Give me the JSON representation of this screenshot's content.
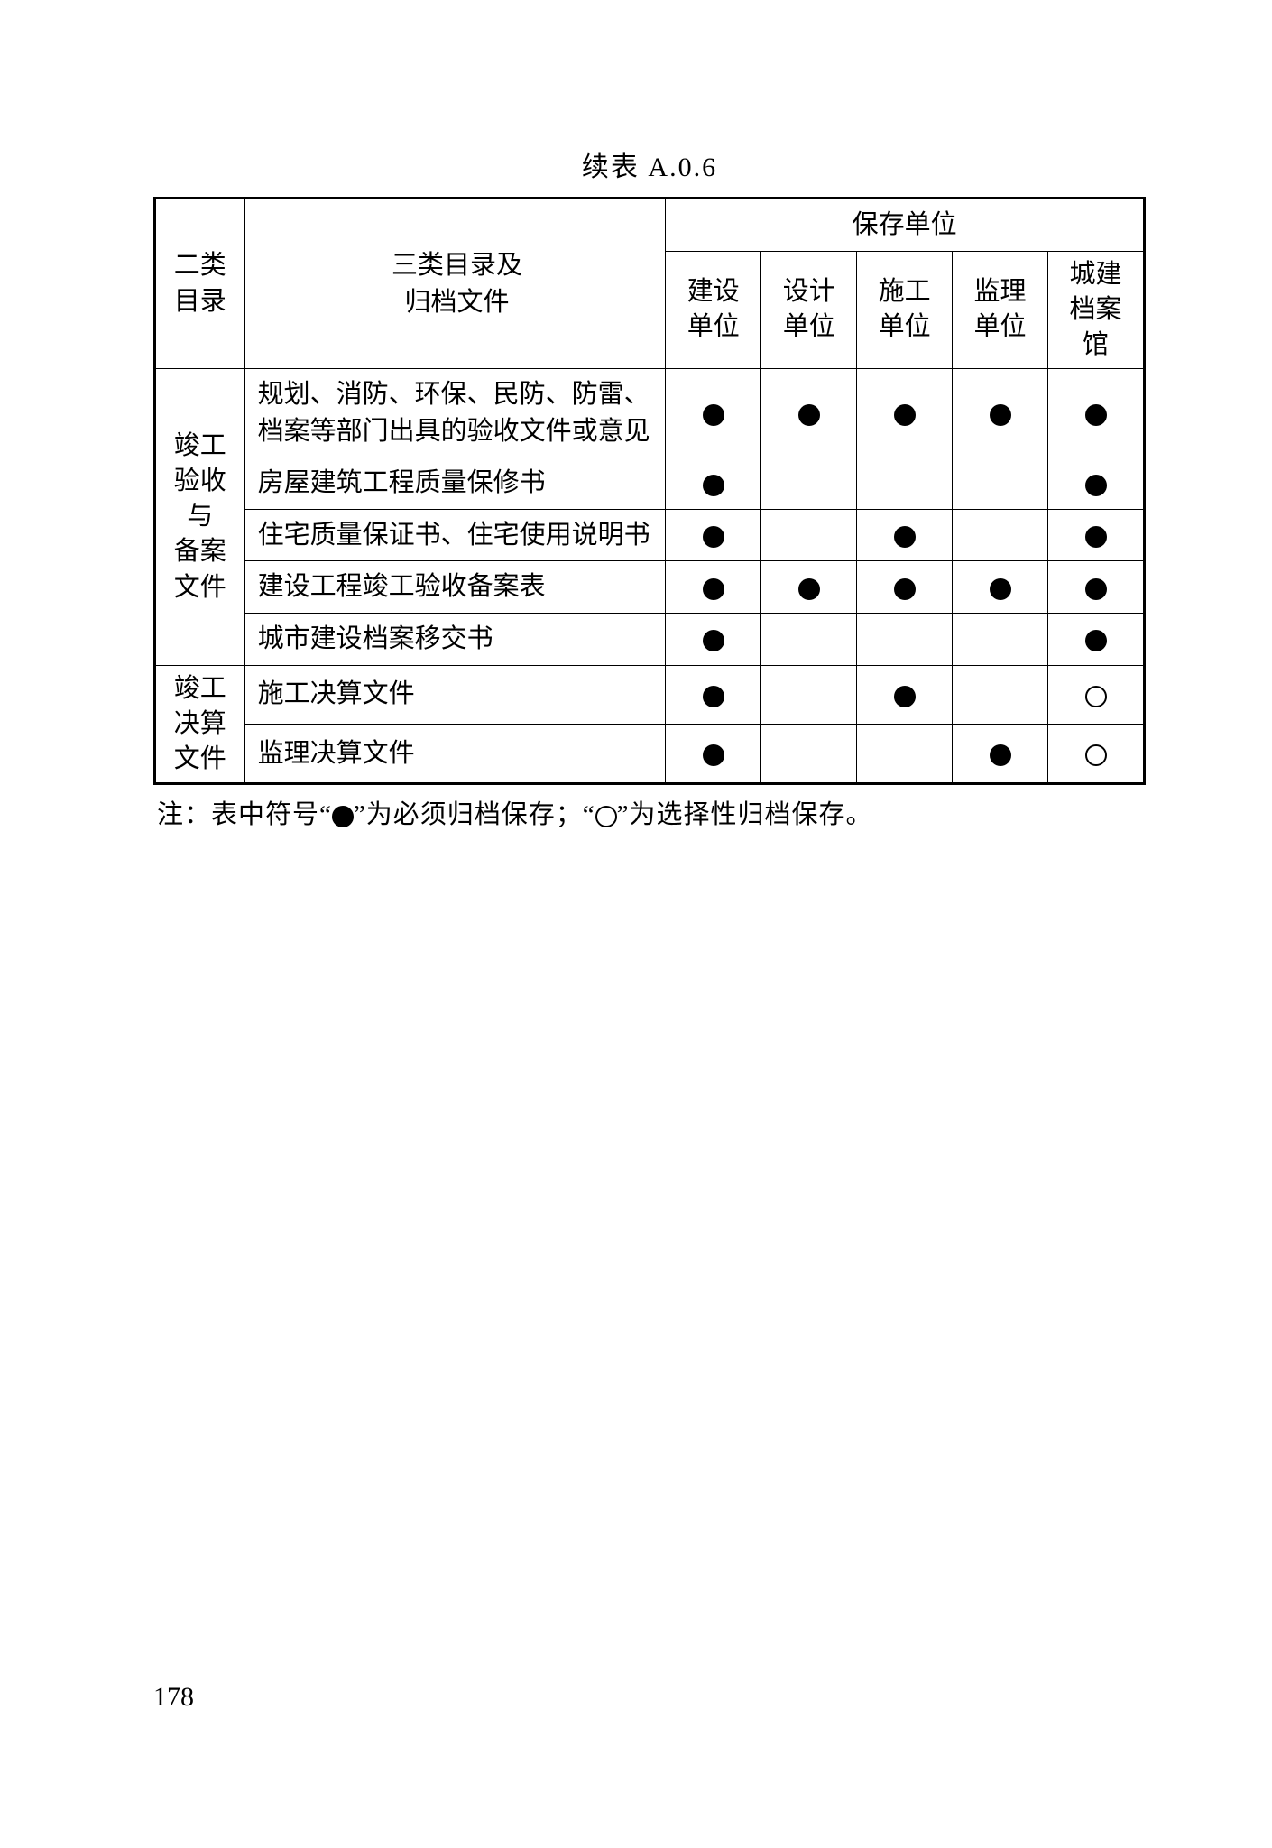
{
  "title": "续表 A.0.6",
  "headers": {
    "cat1": "二类\n目录",
    "cat2_line1": "三类目录及",
    "cat2_line2": "归档文件",
    "storage_group": "保存单位",
    "units": [
      "建设\n单位",
      "设计\n单位",
      "施工\n单位",
      "监理\n单位",
      "城建\n档案\n馆"
    ]
  },
  "groups": [
    {
      "cat1": "竣工\n验收\n与\n备案\n文件",
      "rows": [
        {
          "desc": "规划、消防、环保、民防、防雷、档案等部门出具的验收文件或意见",
          "marks": [
            "●",
            "●",
            "●",
            "●",
            "●"
          ]
        },
        {
          "desc": "房屋建筑工程质量保修书",
          "marks": [
            "●",
            "",
            "",
            "",
            "●"
          ]
        },
        {
          "desc": "住宅质量保证书、住宅使用说明书",
          "marks": [
            "●",
            "",
            "●",
            "",
            "●"
          ]
        },
        {
          "desc": "建设工程竣工验收备案表",
          "marks": [
            "●",
            "●",
            "●",
            "●",
            "●"
          ]
        },
        {
          "desc": "城市建设档案移交书",
          "marks": [
            "●",
            "",
            "",
            "",
            "●"
          ]
        }
      ]
    },
    {
      "cat1": "竣工\n决算\n文件",
      "rows": [
        {
          "desc": "施工决算文件",
          "marks": [
            "●",
            "",
            "●",
            "",
            "○"
          ]
        },
        {
          "desc": "监理决算文件",
          "marks": [
            "●",
            "",
            "",
            "●",
            "○"
          ]
        }
      ]
    }
  ],
  "note_prefix": "注：表中符号“",
  "note_mid1": "”为必须归档保存；“",
  "note_mid2": "”为选择性归档保存。",
  "page_number": "178",
  "style": {
    "solid_mark": "●",
    "hollow_mark": "○",
    "border_color": "#000000",
    "background": "#ffffff",
    "font_size_body": 29,
    "font_size_title": 30
  }
}
